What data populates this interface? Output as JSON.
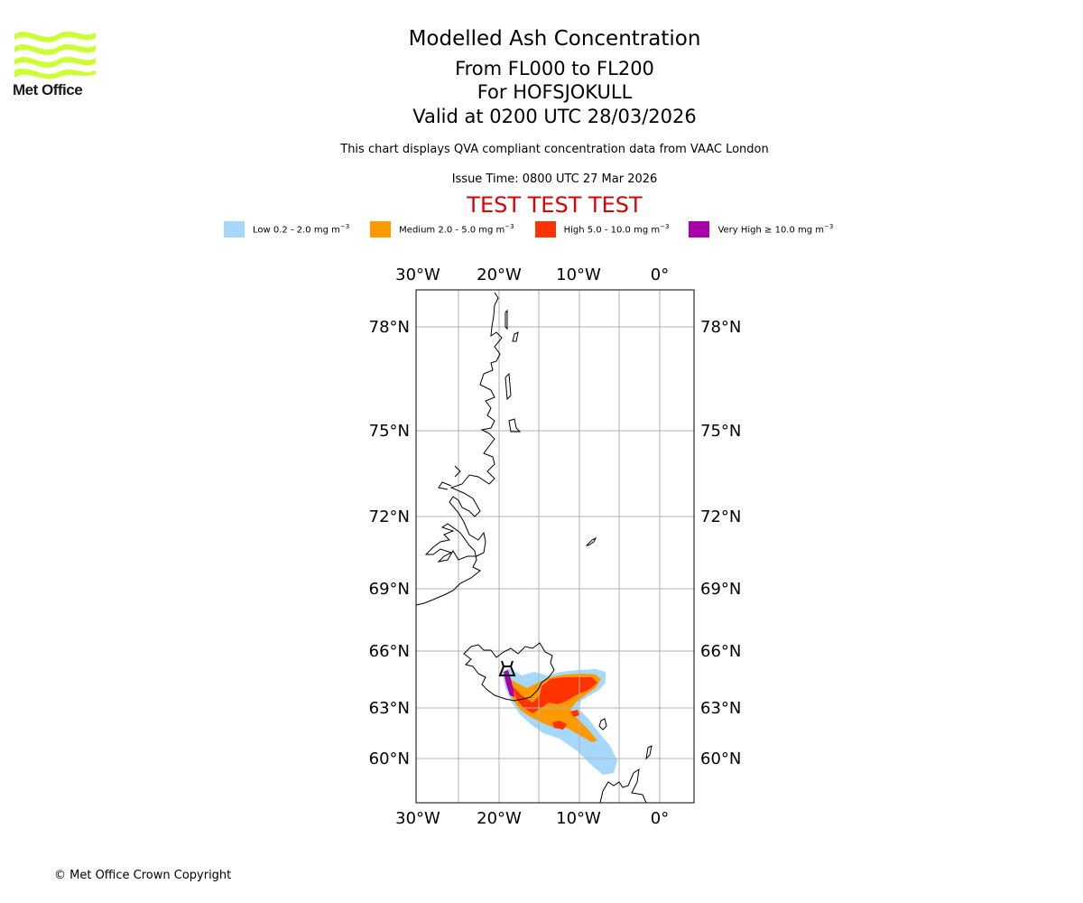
{
  "logo": {
    "text": "Met Office",
    "color": "#ccff33"
  },
  "titles": {
    "main": "Modelled Ash Concentration",
    "levels": "From FL000 to FL200",
    "volcano": "For HOFSJOKULL",
    "valid": "Valid at 0200 UTC 28/03/2026"
  },
  "subtitle": "This chart displays QVA compliant concentration data from VAAC London",
  "issue_time": "Issue Time: 0800 UTC 27 Mar 2026",
  "test_banner": {
    "text": "TEST TEST TEST",
    "color": "#dd0000"
  },
  "legend": [
    {
      "label": "Low 0.2 - 2.0 mg m",
      "unit_exp": "−3",
      "color": "#a6d8fb"
    },
    {
      "label": "Medium 2.0 - 5.0 mg m",
      "unit_exp": "−3",
      "color": "#ff9900"
    },
    {
      "label": "High 5.0 - 10.0 mg m",
      "unit_exp": "−3",
      "color": "#ff3300"
    },
    {
      "label": "Very High  ≥  10.0 mg m",
      "unit_exp": "−3",
      "color": "#aa00aa"
    }
  ],
  "map": {
    "lon_labels": [
      "30°W",
      "20°W",
      "10°W",
      "0°"
    ],
    "lat_labels": [
      "78°N",
      "75°N",
      "72°N",
      "69°N",
      "66°N",
      "63°N",
      "60°N"
    ]
  },
  "copyright": "© Met Office Crown Copyright"
}
